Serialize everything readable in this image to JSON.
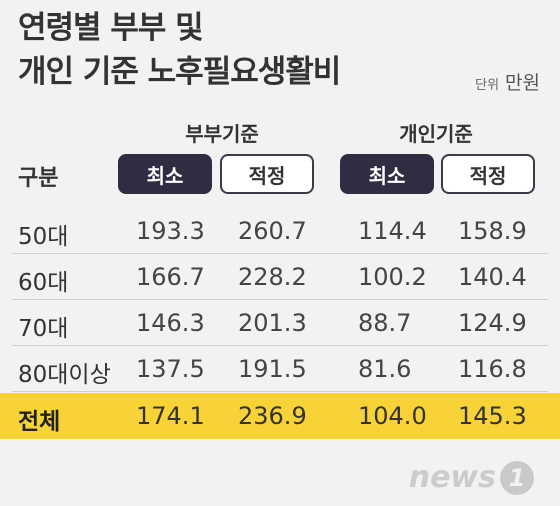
{
  "title": {
    "line1": "연령별 부부 및",
    "line2": "개인 기준 노후필요생활비"
  },
  "unit": {
    "key": "단위",
    "value": "만원"
  },
  "table": {
    "category_header": "구분",
    "groups": [
      "부부기준",
      "개인기준"
    ],
    "sub_headers": [
      "최소",
      "적정",
      "최소",
      "적정"
    ],
    "rows": [
      {
        "label": "50대",
        "values": [
          "193.3",
          "260.7",
          "114.4",
          "158.9"
        ]
      },
      {
        "label": "60대",
        "values": [
          "166.7",
          "228.2",
          "100.2",
          "140.4"
        ]
      },
      {
        "label": "70대",
        "values": [
          "146.3",
          "201.3",
          "88.7",
          "124.9"
        ]
      },
      {
        "label": "80대이상",
        "values": [
          "137.5",
          "191.5",
          "81.6",
          "116.8"
        ]
      },
      {
        "label": "전체",
        "values": [
          "174.1",
          "236.9",
          "104.0",
          "145.3"
        ]
      }
    ]
  },
  "chart_data": {
    "type": "table",
    "columns": [
      "부부기준 최소",
      "부부기준 적정",
      "개인기준 최소",
      "개인기준 적정"
    ],
    "categories": [
      "50대",
      "60대",
      "70대",
      "80대이상",
      "전체"
    ],
    "series": [
      {
        "name": "부부기준 최소",
        "values": [
          193.3,
          166.7,
          146.3,
          137.5,
          174.1
        ]
      },
      {
        "name": "부부기준 적정",
        "values": [
          260.7,
          228.2,
          201.3,
          191.5,
          236.9
        ]
      },
      {
        "name": "개인기준 최소",
        "values": [
          114.4,
          100.2,
          88.7,
          81.6,
          104.0
        ]
      },
      {
        "name": "개인기준 적정",
        "values": [
          158.9,
          140.4,
          124.9,
          116.8,
          145.3
        ]
      }
    ]
  },
  "colors": {
    "background": "#f2f2f2",
    "header_dark": "#2f2d42",
    "highlight": "#f8d338"
  },
  "logo": {
    "text": "news",
    "badge": "1"
  }
}
